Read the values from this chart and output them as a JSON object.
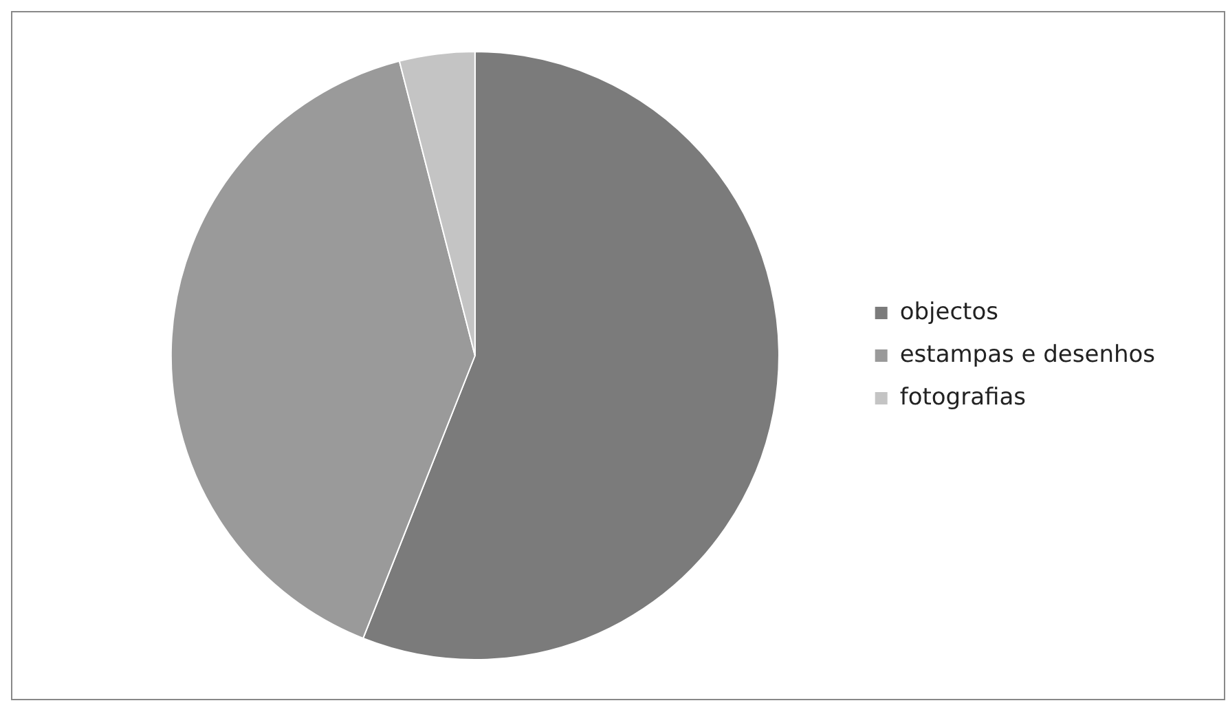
{
  "chart_data": {
    "type": "pie",
    "categories": [
      "objectos",
      "estampas e desenhos",
      "fotografias"
    ],
    "values": [
      56,
      40,
      4
    ],
    "colors": [
      "#7b7b7b",
      "#9a9a9a",
      "#c4c4c4"
    ],
    "legend": "right"
  }
}
